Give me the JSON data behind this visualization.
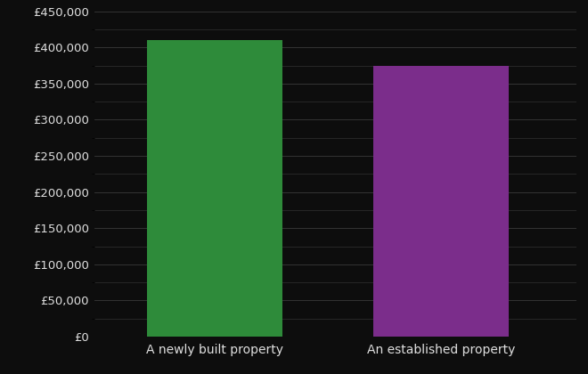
{
  "categories": [
    "A newly built property",
    "An established property"
  ],
  "values": [
    410000,
    375000
  ],
  "bar_colors": [
    "#2e8b3a",
    "#7b2d8b"
  ],
  "background_color": "#0d0d0d",
  "text_color": "#e0e0e0",
  "grid_color": "#3a3a3a",
  "ylim": [
    0,
    450000
  ],
  "yticks": [
    0,
    50000,
    100000,
    150000,
    200000,
    250000,
    300000,
    350000,
    400000,
    450000
  ],
  "bar_width": 0.28,
  "x_positions": [
    0.25,
    0.72
  ],
  "xlim": [
    0.0,
    1.0
  ],
  "tick_fontsize": 9.5,
  "label_fontsize": 10
}
